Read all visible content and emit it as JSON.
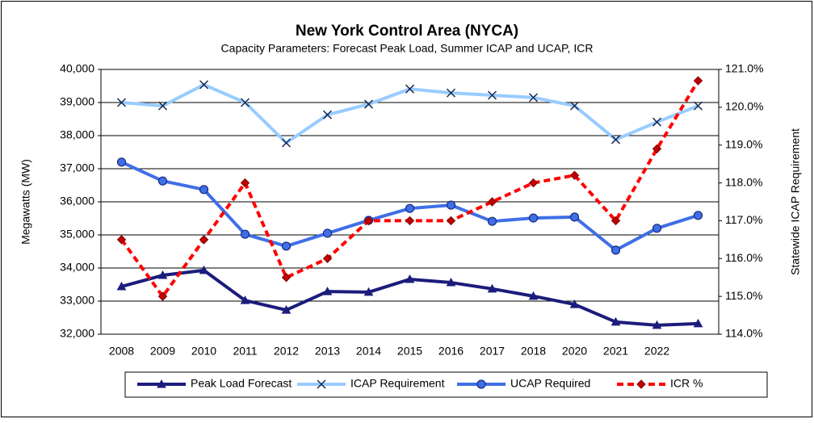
{
  "chart_data": {
    "type": "line",
    "title": "New York Control Area (NYCA)",
    "subtitle": "Capacity Parameters: Forecast Peak Load, Summer ICAP and UCAP, ICR",
    "y_label": "Megawatts (MW)",
    "y2_label": "Statewide ICAP Requirement",
    "categories": [
      "2008",
      "2009",
      "2010",
      "2011",
      "2012",
      "2013",
      "2014",
      "2015",
      "2016",
      "2017",
      "2018",
      "2020",
      "2021",
      "2022",
      null
    ],
    "ylim": [
      32000,
      40000
    ],
    "yticks": [
      {
        "value": 32000,
        "label": "32,000"
      },
      {
        "value": 33000,
        "label": "33,000"
      },
      {
        "value": 34000,
        "label": "34,000"
      },
      {
        "value": 35000,
        "label": "35,000"
      },
      {
        "value": 36000,
        "label": "36,000"
      },
      {
        "value": 37000,
        "label": "37,000"
      },
      {
        "value": 38000,
        "label": "38,000"
      },
      {
        "value": 39000,
        "label": "39,000"
      },
      {
        "value": 40000,
        "label": "40,000"
      }
    ],
    "y2lim": [
      114,
      121
    ],
    "y2ticks": [
      {
        "value": 114,
        "label": "114.0%"
      },
      {
        "value": 115,
        "label": "115.0%"
      },
      {
        "value": 116,
        "label": "116.0%"
      },
      {
        "value": 117,
        "label": "117.0%"
      },
      {
        "value": 118,
        "label": "118.0%"
      },
      {
        "value": 119,
        "label": "119.0%"
      },
      {
        "value": 120,
        "label": "120.0%"
      },
      {
        "value": 121,
        "label": "121.0%"
      }
    ],
    "grid": true,
    "legend": "bottom",
    "series": [
      {
        "name": "Peak Load Forecast",
        "color": "#1c1c7c",
        "marker": "triangle",
        "dash": false,
        "values": [
          33440,
          33780,
          33930,
          33020,
          32730,
          33290,
          33270,
          33660,
          33560,
          33370,
          33150,
          32900,
          32370,
          32270,
          32320
        ]
      },
      {
        "name": "ICAP Requirement",
        "color": "#99ccff",
        "marker": "x",
        "dash": false,
        "values": [
          39000,
          38900,
          39540,
          39000,
          37780,
          38630,
          38950,
          39410,
          39290,
          39220,
          39150,
          38900,
          37880,
          38410,
          38900
        ]
      },
      {
        "name": "UCAP Required",
        "color": "#3f6fe6",
        "marker": "circle",
        "dash": false,
        "values": [
          37200,
          36630,
          36370,
          35020,
          34660,
          35050,
          35440,
          35800,
          35900,
          35410,
          35510,
          35540,
          34540,
          35200,
          35590
        ]
      },
      {
        "name": "ICR %",
        "color": "#ff0000",
        "marker": "diamond",
        "dash": true,
        "axis": "y2",
        "values": [
          116.5,
          115.0,
          116.5,
          118.0,
          115.5,
          116.0,
          117.0,
          117.0,
          117.0,
          117.5,
          118.0,
          118.2,
          117.0,
          118.9,
          120.7
        ]
      }
    ]
  }
}
